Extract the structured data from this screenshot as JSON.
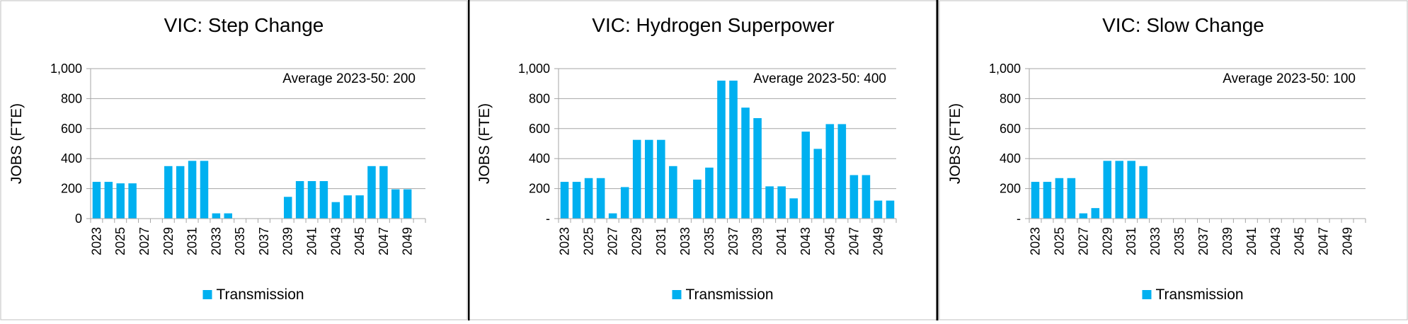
{
  "chart_data": [
    {
      "type": "bar",
      "title": "VIC: Step Change",
      "ylabel": "JOBS (FTE)",
      "ylim": [
        0,
        1000
      ],
      "yticks": [
        "0",
        "200",
        "400",
        "600",
        "800",
        "1,000"
      ],
      "annotation": "Average 2023-50: 200",
      "legend": "bottom",
      "color": "#00b0f0",
      "series": [
        {
          "name": "Transmission",
          "values": [
            245,
            245,
            235,
            235,
            0,
            0,
            350,
            350,
            385,
            385,
            35,
            35,
            0,
            0,
            0,
            0,
            145,
            250,
            250,
            250,
            110,
            155,
            155,
            350,
            350,
            195,
            195
          ]
        }
      ],
      "categories": [
        "2023",
        "2024",
        "2025",
        "2026",
        "2027",
        "2028",
        "2029",
        "2030",
        "2031",
        "2032",
        "2033",
        "2034",
        "2035",
        "2036",
        "2037",
        "2038",
        "2039",
        "2040",
        "2041",
        "2042",
        "2043",
        "2044",
        "2045",
        "2046",
        "2047",
        "2048",
        "2049"
      ],
      "tick_labels": [
        "2023",
        "2025",
        "2027",
        "2029",
        "2031",
        "2033",
        "2035",
        "2037",
        "2039",
        "2041",
        "2043",
        "2045",
        "2047",
        "2049"
      ]
    },
    {
      "type": "bar",
      "title": "VIC: Hydrogen Superpower",
      "ylabel": "JOBS (FTE)",
      "ylim": [
        0,
        1000
      ],
      "yticks": [
        "-",
        "200",
        "400",
        "600",
        "800",
        "1,000"
      ],
      "annotation": "Average 2023-50: 400",
      "legend": "bottom",
      "color": "#00b0f0",
      "series": [
        {
          "name": "Transmission",
          "values": [
            245,
            245,
            270,
            270,
            35,
            210,
            525,
            525,
            525,
            350,
            0,
            260,
            340,
            920,
            920,
            740,
            670,
            215,
            215,
            135,
            580,
            465,
            630,
            630,
            290,
            290,
            120,
            120
          ]
        }
      ],
      "categories": [
        "2023",
        "2024",
        "2025",
        "2026",
        "2027",
        "2028",
        "2029",
        "2030",
        "2031",
        "2032",
        "2033",
        "2034",
        "2035",
        "2036",
        "2037",
        "2038",
        "2039",
        "2040",
        "2041",
        "2042",
        "2043",
        "2044",
        "2045",
        "2046",
        "2047",
        "2048",
        "2049",
        "2050"
      ],
      "tick_labels": [
        "2023",
        "2025",
        "2027",
        "2029",
        "2031",
        "2033",
        "2035",
        "2037",
        "2039",
        "2041",
        "2043",
        "2045",
        "2047",
        "2049"
      ]
    },
    {
      "type": "bar",
      "title": "VIC: Slow Change",
      "ylabel": "JOBS (FTE)",
      "ylim": [
        0,
        1000
      ],
      "yticks": [
        "-",
        "200",
        "400",
        "600",
        "800",
        "1,000"
      ],
      "annotation": "Average 2023-50: 100",
      "legend": "bottom",
      "color": "#00b0f0",
      "series": [
        {
          "name": "Transmission",
          "values": [
            245,
            245,
            270,
            270,
            35,
            70,
            385,
            385,
            385,
            350,
            0,
            0,
            0,
            0,
            0,
            0,
            0,
            0,
            0,
            0,
            0,
            0,
            0,
            0,
            0,
            0,
            0,
            0
          ]
        }
      ],
      "categories": [
        "2023",
        "2024",
        "2025",
        "2026",
        "2027",
        "2028",
        "2029",
        "2030",
        "2031",
        "2032",
        "2033",
        "2034",
        "2035",
        "2036",
        "2037",
        "2038",
        "2039",
        "2040",
        "2041",
        "2042",
        "2043",
        "2044",
        "2045",
        "2046",
        "2047",
        "2048",
        "2049",
        "2050"
      ],
      "tick_labels": [
        "2023",
        "2025",
        "2027",
        "2029",
        "2031",
        "2033",
        "2035",
        "2037",
        "2039",
        "2041",
        "2043",
        "2045",
        "2047",
        "2049"
      ]
    }
  ]
}
